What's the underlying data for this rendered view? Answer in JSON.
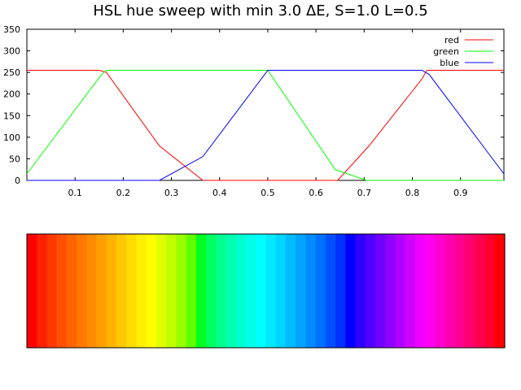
{
  "chart_data": {
    "type": "line",
    "title": "HSL hue sweep with min 3.0 ΔE, S=1.0 L=0.5",
    "xlim": [
      0.0,
      0.99
    ],
    "ylim": [
      0,
      350
    ],
    "xticks": [
      0.1,
      0.2,
      0.3,
      0.4,
      0.5,
      0.6,
      0.7,
      0.8,
      0.9
    ],
    "yticks": [
      0,
      50,
      100,
      150,
      200,
      250,
      300,
      350
    ],
    "grid": false,
    "legend_position": "top-right",
    "series": [
      {
        "name": "red",
        "color": "#ff0000",
        "x": [
          0.0,
          0.15,
          0.165,
          0.275,
          0.365,
          0.645,
          0.71,
          0.82,
          0.83,
          0.99
        ],
        "y": [
          255,
          255,
          250,
          80,
          0,
          0,
          80,
          235,
          255,
          255
        ]
      },
      {
        "name": "green",
        "color": "#00ff00",
        "x": [
          0.0,
          0.155,
          0.165,
          0.5,
          0.64,
          0.705,
          0.99
        ],
        "y": [
          15,
          245,
          255,
          255,
          25,
          0,
          0
        ]
      },
      {
        "name": "blue",
        "color": "#0000ff",
        "x": [
          0.0,
          0.275,
          0.365,
          0.5,
          0.82,
          0.835,
          0.99
        ],
        "y": [
          0,
          0,
          55,
          255,
          255,
          245,
          15
        ]
      }
    ],
    "color_strip": {
      "colors": [
        "#ff0000",
        "#ff2000",
        "#ff3800",
        "#ff5000",
        "#ff6400",
        "#ff7800",
        "#ff8c00",
        "#ffa000",
        "#ffb400",
        "#ffc800",
        "#ffdc00",
        "#fff000",
        "#ffff00",
        "#e0ff00",
        "#c0ff00",
        "#98ff00",
        "#60ff00",
        "#00ff20",
        "#00ff60",
        "#00ff90",
        "#00ffb0",
        "#00ffd0",
        "#00ffea",
        "#00ffff",
        "#00eaff",
        "#00d4ff",
        "#00bcff",
        "#00a4ff",
        "#008cff",
        "#0070ff",
        "#0050ff",
        "#0030ff",
        "#0000ff",
        "#3000ff",
        "#5000ff",
        "#7000ff",
        "#9000ff",
        "#b000ff",
        "#d000ff",
        "#f000ff",
        "#ff00f0",
        "#ff00d0",
        "#ff00b0",
        "#ff0090",
        "#ff0070",
        "#ff0050",
        "#ff0030",
        "#ff0000"
      ]
    }
  }
}
